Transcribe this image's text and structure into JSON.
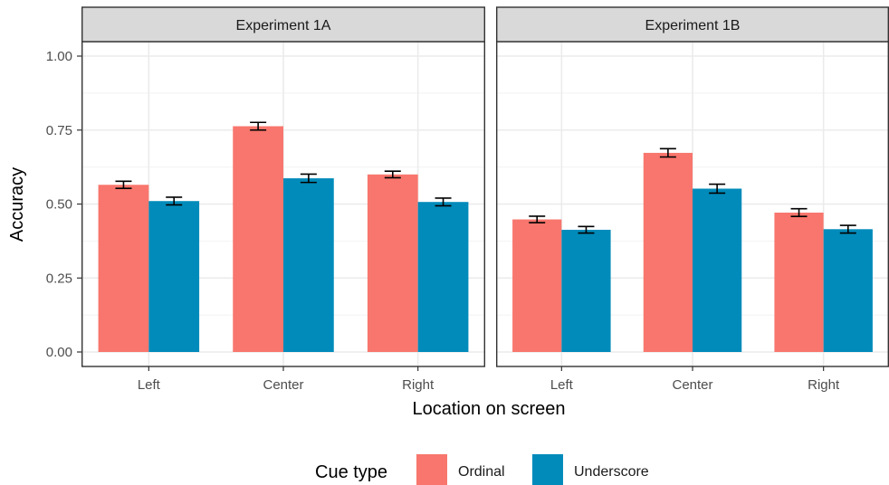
{
  "chart_data": {
    "type": "bar",
    "ylabel": "Accuracy",
    "xlabel": "Location on screen",
    "ylim": [
      0,
      1.05
    ],
    "yticks": [
      "0.00",
      "0.25",
      "0.50",
      "0.75",
      "1.00"
    ],
    "grid": true,
    "legend": {
      "title": "Cue type",
      "placement": "bottom",
      "entries": [
        {
          "name": "Ordinal",
          "color": "#F8766D"
        },
        {
          "name": "Underscore",
          "color": "#008BBA"
        }
      ]
    },
    "categories": [
      "Left",
      "Center",
      "Right"
    ],
    "panels": [
      {
        "title": "Experiment 1A",
        "series": [
          {
            "name": "Ordinal",
            "values": [
              0.565,
              0.763,
              0.6
            ],
            "errors": [
              0.012,
              0.013,
              0.011
            ]
          },
          {
            "name": "Underscore",
            "values": [
              0.51,
              0.587,
              0.507
            ],
            "errors": [
              0.013,
              0.014,
              0.013
            ]
          }
        ]
      },
      {
        "title": "Experiment 1B",
        "series": [
          {
            "name": "Ordinal",
            "values": [
              0.448,
              0.673,
              0.471
            ],
            "errors": [
              0.011,
              0.014,
              0.013
            ]
          },
          {
            "name": "Underscore",
            "values": [
              0.413,
              0.552,
              0.415
            ],
            "errors": [
              0.011,
              0.015,
              0.013
            ]
          }
        ]
      }
    ]
  }
}
